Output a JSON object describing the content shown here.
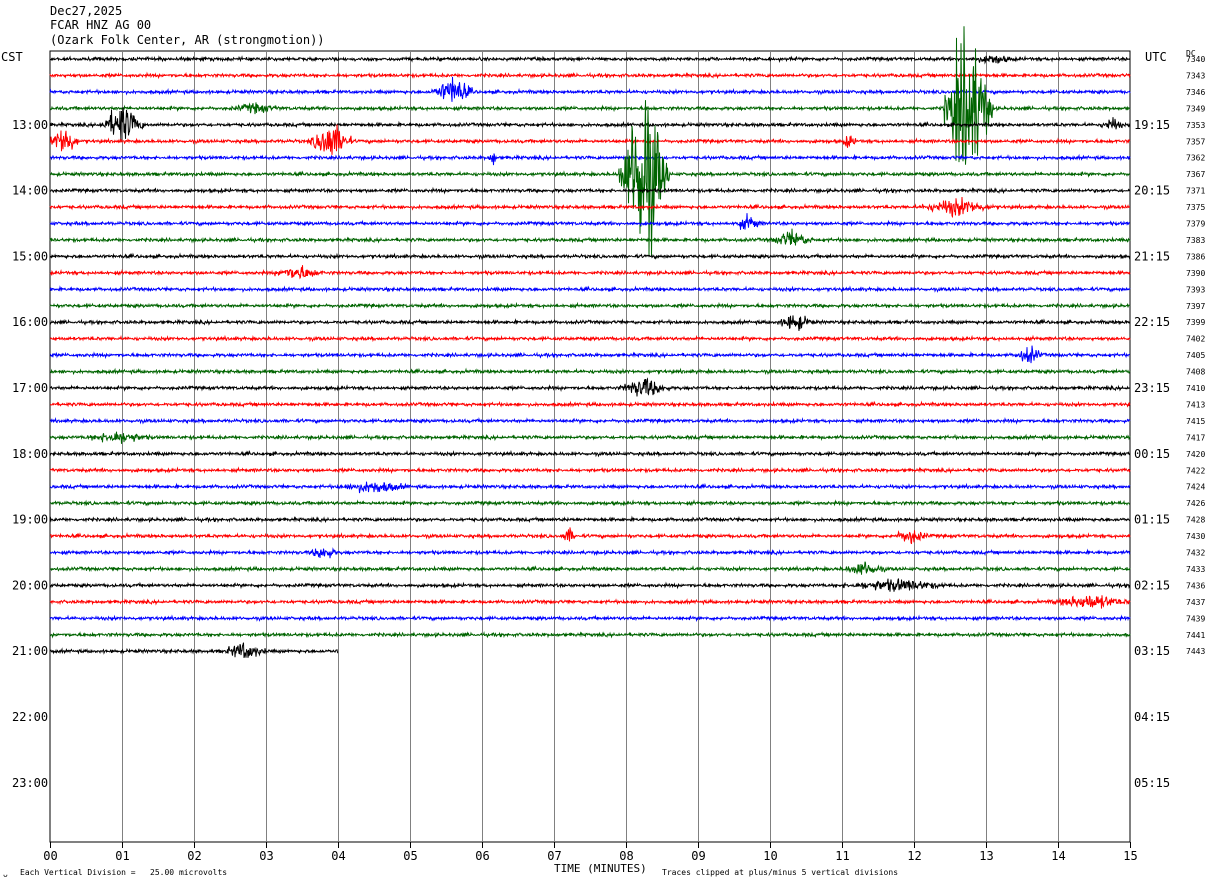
{
  "header": {
    "date": "Dec27,2025",
    "station": "FCAR HNZ AG 00",
    "location": "(Ozark Folk Center, AR (strongmotion))"
  },
  "left_tz": "CST",
  "right_tz": "UTC",
  "dc_label": "DC",
  "footer": {
    "mark": "ᴗ",
    "division": "Each Vertical Division =   25.00 microvolts",
    "xlabel": "TIME (MINUTES)",
    "clip_note": "Traces clipped at plus/minus 5 vertical divisions"
  },
  "chart_data": {
    "type": "line",
    "title": "FCAR HNZ AG 00",
    "xlabel": "TIME (MINUTES)",
    "xlim": [
      0,
      15
    ],
    "x_ticks": [
      "00",
      "01",
      "02",
      "03",
      "04",
      "05",
      "06",
      "07",
      "08",
      "09",
      "10",
      "11",
      "12",
      "13",
      "14",
      "15"
    ],
    "rows_per_hour": 4,
    "minutes_per_row": 15,
    "left_hour_labels": [
      "13:00",
      "14:00",
      "15:00",
      "16:00",
      "17:00",
      "18:00",
      "19:00",
      "20:00",
      "21:00",
      "22:00",
      "23:00"
    ],
    "right_hour_labels": [
      "19:15",
      "20:15",
      "21:15",
      "22:15",
      "23:15",
      "00:15",
      "01:15",
      "02:15",
      "03:15",
      "04:15",
      "05:15"
    ],
    "trace_colors": [
      "#000000",
      "#ff0000",
      "#0000ff",
      "#006400"
    ],
    "dc_offsets": [
      "7340",
      "7343",
      "7346",
      "7349",
      "7353",
      "7357",
      "7362",
      "7367",
      "7371",
      "7375",
      "7379",
      "7383",
      "7386",
      "7390",
      "7393",
      "7397",
      "7399",
      "7402",
      "7405",
      "7408",
      "7410",
      "7413",
      "7415",
      "7417",
      "7420",
      "7422",
      "7424",
      "7426",
      "7428",
      "7430",
      "7432",
      "7433",
      "7436",
      "7437",
      "7439",
      "7441",
      "7443"
    ],
    "last_row_end_minute": 4.0,
    "events": [
      {
        "row": 0,
        "start": 12.8,
        "end": 13.4,
        "amp": 3
      },
      {
        "row": 2,
        "start": 5.3,
        "end": 5.9,
        "amp": 10
      },
      {
        "row": 3,
        "start": 2.5,
        "end": 3.2,
        "amp": 3
      },
      {
        "row": 3,
        "start": 12.4,
        "end": 13.1,
        "amp": 60
      },
      {
        "row": 4,
        "start": 0.7,
        "end": 1.3,
        "amp": 14
      },
      {
        "row": 4,
        "start": 14.6,
        "end": 14.9,
        "amp": 5
      },
      {
        "row": 5,
        "start": 0.0,
        "end": 0.4,
        "amp": 12
      },
      {
        "row": 5,
        "start": 3.6,
        "end": 4.2,
        "amp": 14
      },
      {
        "row": 5,
        "start": 11.0,
        "end": 11.2,
        "amp": 5
      },
      {
        "row": 6,
        "start": 6.1,
        "end": 6.2,
        "amp": 8
      },
      {
        "row": 7,
        "start": 7.9,
        "end": 8.6,
        "amp": 70
      },
      {
        "row": 9,
        "start": 12.1,
        "end": 13.1,
        "amp": 6
      },
      {
        "row": 10,
        "start": 9.5,
        "end": 9.9,
        "amp": 5
      },
      {
        "row": 11,
        "start": 10.0,
        "end": 10.6,
        "amp": 6
      },
      {
        "row": 13,
        "start": 3.1,
        "end": 3.8,
        "amp": 5
      },
      {
        "row": 16,
        "start": 10.1,
        "end": 10.6,
        "amp": 6
      },
      {
        "row": 18,
        "start": 13.4,
        "end": 13.8,
        "amp": 6
      },
      {
        "row": 20,
        "start": 7.9,
        "end": 8.6,
        "amp": 7
      },
      {
        "row": 23,
        "start": 0.5,
        "end": 1.4,
        "amp": 4
      },
      {
        "row": 26,
        "start": 4.0,
        "end": 5.0,
        "amp": 4
      },
      {
        "row": 29,
        "start": 7.1,
        "end": 7.3,
        "amp": 6
      },
      {
        "row": 29,
        "start": 11.7,
        "end": 12.2,
        "amp": 5
      },
      {
        "row": 30,
        "start": 3.6,
        "end": 4.0,
        "amp": 5
      },
      {
        "row": 31,
        "start": 11.0,
        "end": 11.6,
        "amp": 5
      },
      {
        "row": 32,
        "start": 11.0,
        "end": 12.5,
        "amp": 4
      },
      {
        "row": 33,
        "start": 13.9,
        "end": 15.0,
        "amp": 5
      },
      {
        "row": 36,
        "start": 2.4,
        "end": 3.0,
        "amp": 6
      }
    ]
  }
}
